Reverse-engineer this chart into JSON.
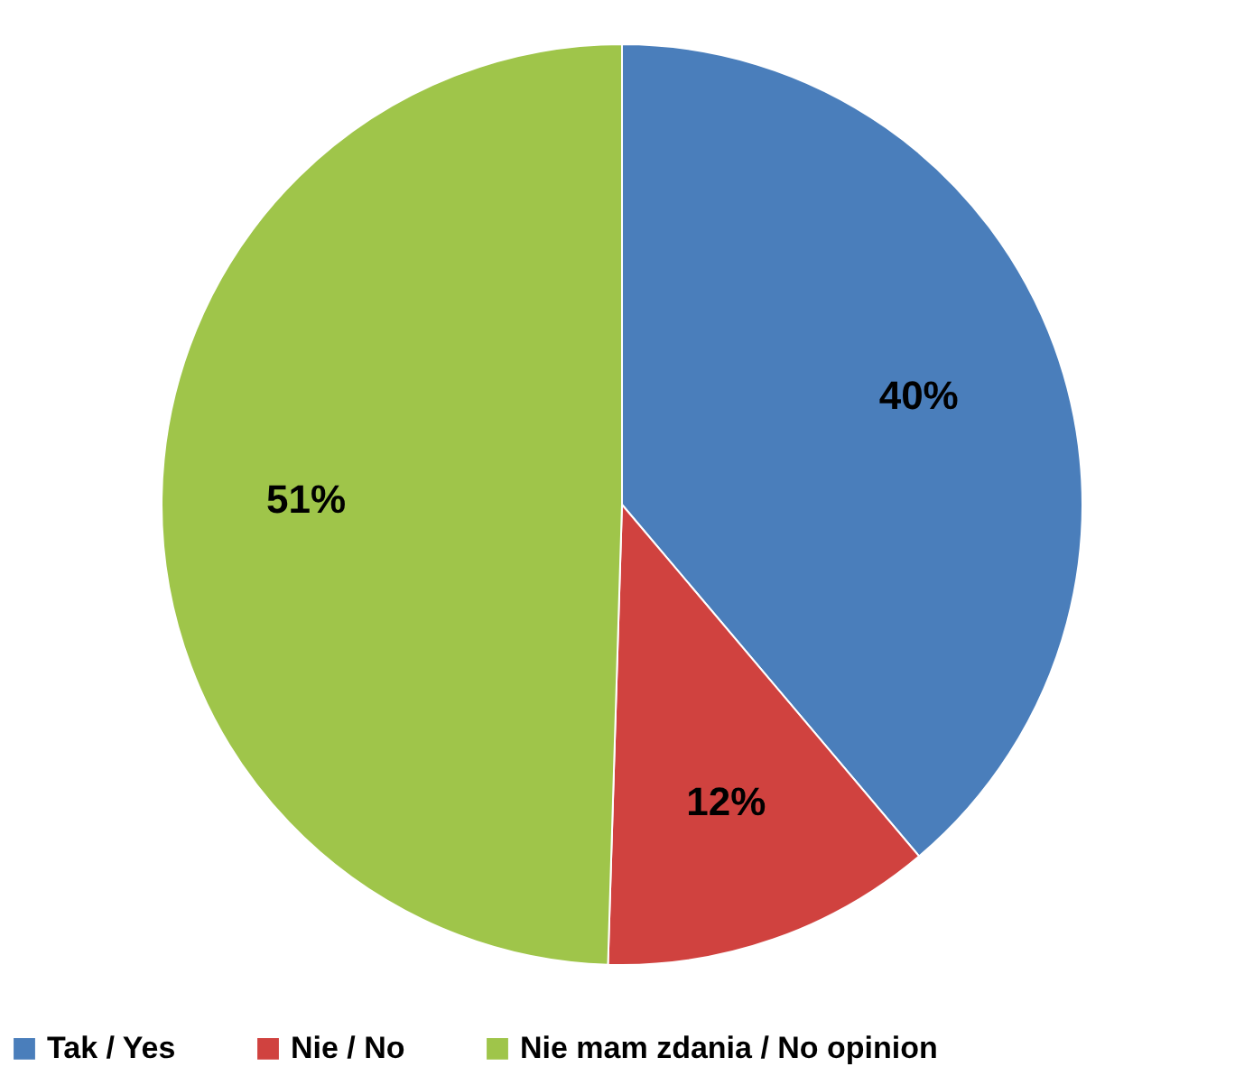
{
  "chart_data": {
    "type": "pie",
    "categories": [
      "Tak / Yes",
      "Nie / No",
      "Nie mam zdania / No opinion"
    ],
    "values": [
      40,
      12,
      51
    ],
    "colors": [
      "#4a7ebb",
      "#d0423f",
      "#9fc54a"
    ],
    "value_labels": [
      "40%",
      "12%",
      "51%"
    ],
    "legend": "bottom"
  }
}
